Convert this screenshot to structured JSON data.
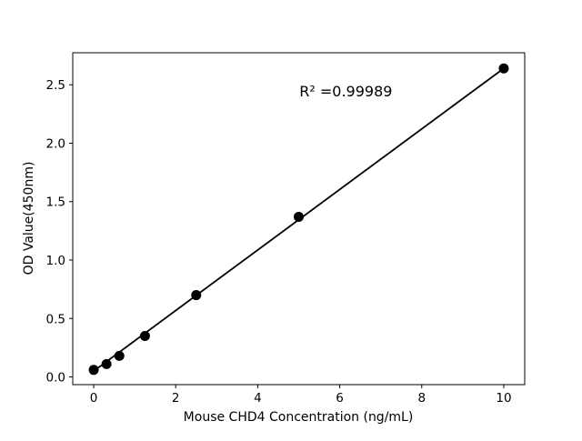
{
  "chart_data": {
    "type": "scatter",
    "title": "",
    "xlabel": "Mouse CHD4 Concentration (ng/mL)",
    "ylabel": "OD Value(450nm)",
    "annotation": {
      "text": "R² =0.99989",
      "x": 6.15,
      "y": 2.4
    },
    "series": [
      {
        "name": "standard-curve-points",
        "x": [
          0,
          0.3125,
          0.625,
          1.25,
          2.5,
          5,
          10
        ],
        "y": [
          0.06,
          0.11,
          0.18,
          0.35,
          0.7,
          1.37,
          2.64
        ]
      }
    ],
    "fit_line": {
      "from": [
        0,
        0.05
      ],
      "to": [
        10,
        2.64
      ]
    },
    "xticks": {
      "values": [
        0,
        2,
        4,
        6,
        8,
        10
      ],
      "labels": [
        "0",
        "2",
        "4",
        "6",
        "8",
        "10"
      ]
    },
    "yticks": {
      "values": [
        0,
        0.5,
        1.0,
        1.5,
        2.0,
        2.5
      ],
      "labels": [
        "0.0",
        "0.5",
        "1.0",
        "1.5",
        "2.0",
        "2.5"
      ]
    },
    "xlim": [
      -0.511,
      10.511
    ],
    "ylim": [
      -0.066,
      2.774
    ],
    "grid": false,
    "legend_position": "none",
    "marker_color": "#000000",
    "line_color": "#000000",
    "axis_color": "#000000",
    "background_color": "#ffffff"
  }
}
